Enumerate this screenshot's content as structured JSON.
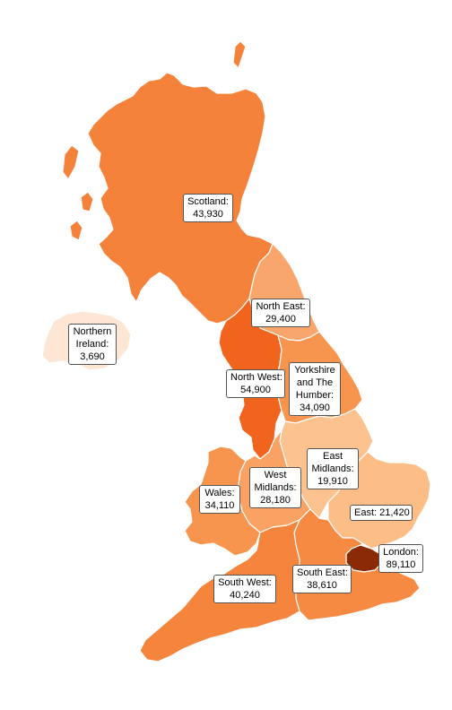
{
  "map": {
    "regions": [
      {
        "id": "scotland",
        "name": "Scotland",
        "value": "43,930",
        "color": "#f5823a"
      },
      {
        "id": "northern-ireland",
        "name": "Northern Ireland",
        "value": "3,690",
        "color": "#fde6d4"
      },
      {
        "id": "north-east",
        "name": "North East",
        "value": "29,400",
        "color": "#f9a66c"
      },
      {
        "id": "north-west",
        "name": "North West",
        "value": "54,900",
        "color": "#f0641e"
      },
      {
        "id": "yorkshire",
        "name": "Yorkshire and The Humber",
        "value": "34,090",
        "color": "#f7954f"
      },
      {
        "id": "east-midlands",
        "name": "East Midlands",
        "value": "19,910",
        "color": "#fcc28f"
      },
      {
        "id": "west-midlands",
        "name": "West Midlands",
        "value": "28,180",
        "color": "#f9a263"
      },
      {
        "id": "wales",
        "name": "Wales",
        "value": "34,110",
        "color": "#f7954f"
      },
      {
        "id": "east",
        "name": "East",
        "value": "21,420",
        "color": "#fcbd87"
      },
      {
        "id": "london",
        "name": "London",
        "value": "89,110",
        "color": "#8a2a06"
      },
      {
        "id": "south-east",
        "name": "South East",
        "value": "38,610",
        "color": "#f68a42"
      },
      {
        "id": "south-west",
        "name": "South West",
        "value": "40,240",
        "color": "#f5853c"
      }
    ],
    "labels": {
      "scotland": [
        "Scotland:",
        "43,930"
      ],
      "northern_ireland": [
        "Northern",
        "Ireland:",
        "3,690"
      ],
      "north_east": [
        "North East:",
        "29,400"
      ],
      "north_west": [
        "North West:",
        "54,900"
      ],
      "yorkshire": [
        "Yorkshire",
        "and The",
        "Humber:",
        "34,090"
      ],
      "east_midlands": [
        "East",
        "Midlands:",
        "19,910"
      ],
      "west_midlands": [
        "West",
        "Midlands:",
        "28,180"
      ],
      "wales": [
        "Wales:",
        "34,110"
      ],
      "east": [
        "East: 21,420"
      ],
      "london": [
        "London:",
        "89,110"
      ],
      "south_east": [
        "South East:",
        "38,610"
      ],
      "south_west": [
        "South West:",
        "40,240"
      ]
    }
  }
}
